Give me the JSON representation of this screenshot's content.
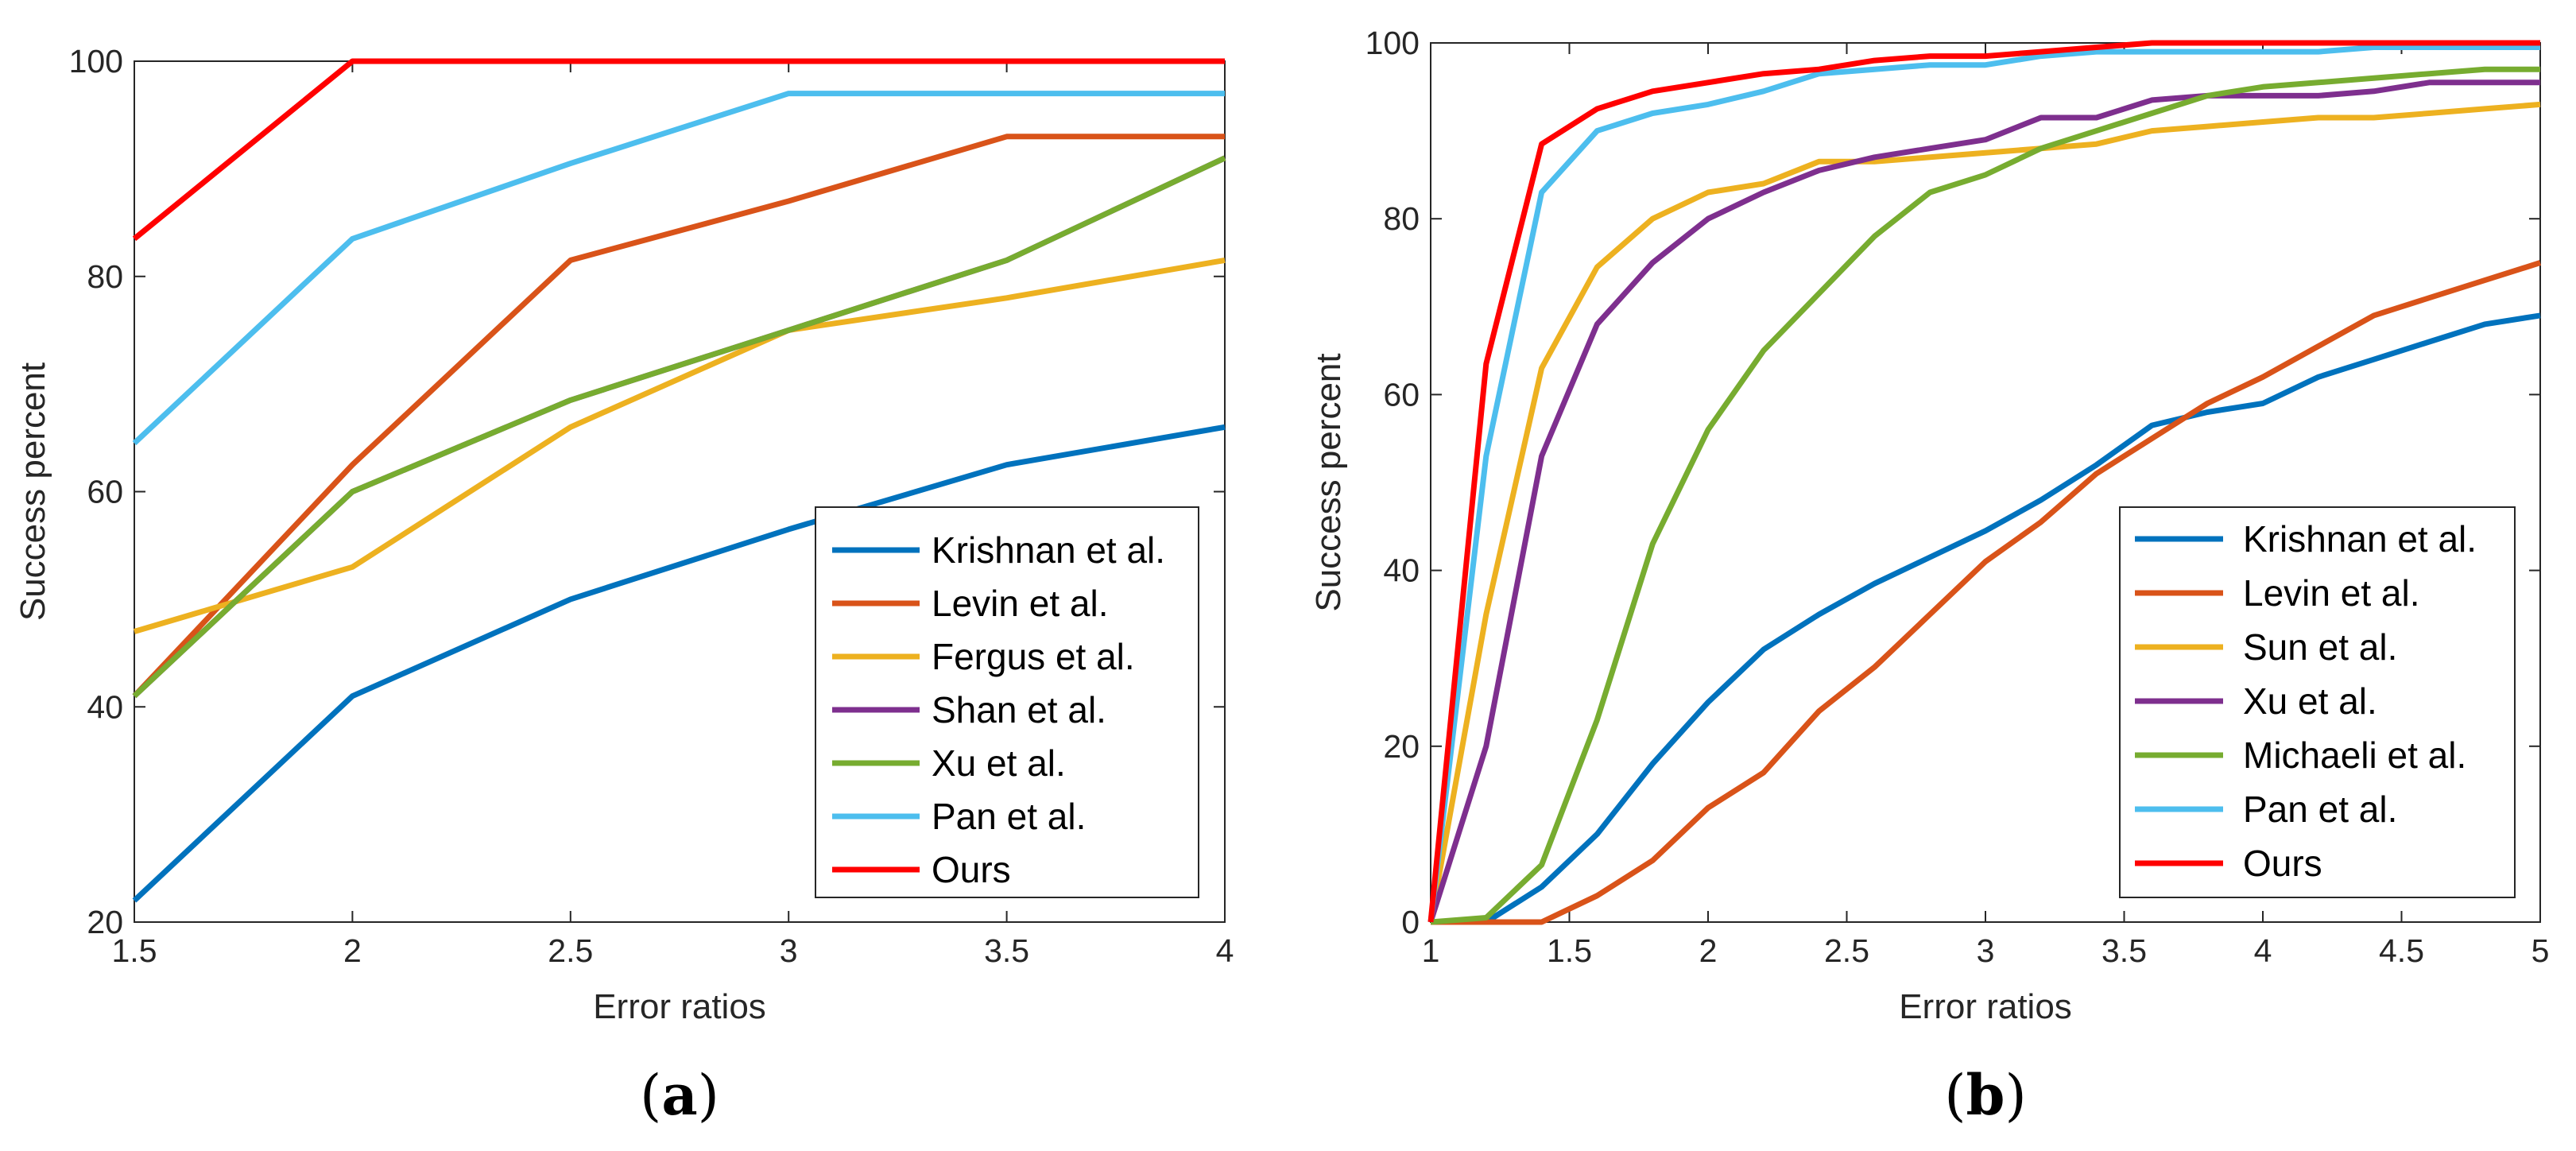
{
  "chart_data": [
    {
      "type": "line",
      "panel_label": "a",
      "title": "",
      "xlabel": "Error ratios",
      "ylabel": "Success percent",
      "xlim": [
        1.5,
        4
      ],
      "ylim": [
        20,
        100
      ],
      "xticks": [
        "1.5",
        "2",
        "2.5",
        "3",
        "3.5",
        "4"
      ],
      "yticks": [
        "20",
        "40",
        "60",
        "80",
        "100"
      ],
      "grid": false,
      "legend_position": "bottom-right",
      "x": [
        1.5,
        2,
        2.5,
        3,
        3.5,
        4
      ],
      "series": [
        {
          "name": "Krishnan et al.",
          "color": "#0072BD",
          "values": [
            22,
            41,
            50,
            56.5,
            62.5,
            66
          ]
        },
        {
          "name": "Levin et al.",
          "color": "#D95319",
          "values": [
            41,
            62.5,
            81.5,
            87,
            93,
            93
          ]
        },
        {
          "name": "Fergus et al.",
          "color": "#EDB120",
          "values": [
            47,
            53,
            66,
            75,
            78,
            81.5
          ]
        },
        {
          "name": "Shan et al.",
          "color": "#7E2F8E",
          "values": [
            41,
            60,
            68.5,
            75,
            81.5,
            91
          ]
        },
        {
          "name": "Xu et al.",
          "color": "#77AC30",
          "values": [
            41,
            60,
            68.5,
            75,
            81.5,
            91
          ]
        },
        {
          "name": "Pan et al.",
          "color": "#4DBEEE",
          "values": [
            64.5,
            83.5,
            90.5,
            97,
            97,
            97
          ]
        },
        {
          "name": "Ours",
          "color": "#FF0000",
          "values": [
            83.5,
            100,
            100,
            100,
            100,
            100
          ]
        }
      ]
    },
    {
      "type": "line",
      "panel_label": "b",
      "title": "",
      "xlabel": "Error ratios",
      "ylabel": "Success percent",
      "xlim": [
        1,
        5
      ],
      "ylim": [
        0,
        100
      ],
      "xticks": [
        "1",
        "1.5",
        "2",
        "2.5",
        "3",
        "3.5",
        "4",
        "4.5",
        "5"
      ],
      "yticks": [
        "0",
        "20",
        "40",
        "60",
        "80",
        "100"
      ],
      "grid": false,
      "legend_position": "bottom-right",
      "x": [
        1,
        1.2,
        1.4,
        1.6,
        1.8,
        2,
        2.2,
        2.4,
        2.6,
        2.8,
        3,
        3.2,
        3.4,
        3.6,
        3.8,
        4,
        4.2,
        4.4,
        4.6,
        4.8,
        5
      ],
      "series": [
        {
          "name": "Krishnan et al.",
          "color": "#0072BD",
          "values": [
            0,
            0,
            4,
            10,
            18,
            25,
            31,
            35,
            38.5,
            41.5,
            44.5,
            48,
            52,
            56.5,
            58,
            59,
            62,
            64,
            66,
            68,
            69
          ]
        },
        {
          "name": "Levin et al.",
          "color": "#D95319",
          "values": [
            0,
            0,
            0,
            3,
            7,
            13,
            17,
            24,
            29,
            35,
            41,
            45.5,
            51,
            55,
            59,
            62,
            65.5,
            69,
            71,
            73,
            75
          ]
        },
        {
          "name": "Sun et al.",
          "color": "#EDB120",
          "values": [
            0,
            35,
            63,
            74.5,
            80,
            83,
            84,
            86.5,
            86.5,
            87,
            87.5,
            88,
            88.5,
            90,
            90.5,
            91,
            91.5,
            91.5,
            92,
            92.5,
            93
          ]
        },
        {
          "name": "Xu et al.",
          "color": "#7E2F8E",
          "values": [
            0,
            20,
            53,
            68,
            75,
            80,
            83,
            85.5,
            87,
            88,
            89,
            91.5,
            91.5,
            93.5,
            94,
            94,
            94,
            94.5,
            95.5,
            95.5,
            95.5
          ]
        },
        {
          "name": "Michaeli et al.",
          "color": "#77AC30",
          "values": [
            0,
            0.5,
            6.5,
            23,
            43,
            56,
            65,
            71.5,
            78,
            83,
            85,
            88,
            90,
            92,
            94,
            95,
            95.5,
            96,
            96.5,
            97,
            97
          ]
        },
        {
          "name": "Pan et al.",
          "color": "#4DBEEE",
          "values": [
            0,
            53,
            83,
            90,
            92,
            93,
            94.5,
            96.5,
            97,
            97.5,
            97.5,
            98.5,
            99,
            99,
            99,
            99,
            99,
            99.5,
            99.5,
            99.5,
            99.5
          ]
        },
        {
          "name": "Ours",
          "color": "#FF0000",
          "values": [
            0,
            63.5,
            88.5,
            92.5,
            94.5,
            95.5,
            96.5,
            97,
            98,
            98.5,
            98.5,
            99,
            99.5,
            100,
            100,
            100,
            100,
            100,
            100,
            100,
            100
          ]
        }
      ]
    }
  ]
}
